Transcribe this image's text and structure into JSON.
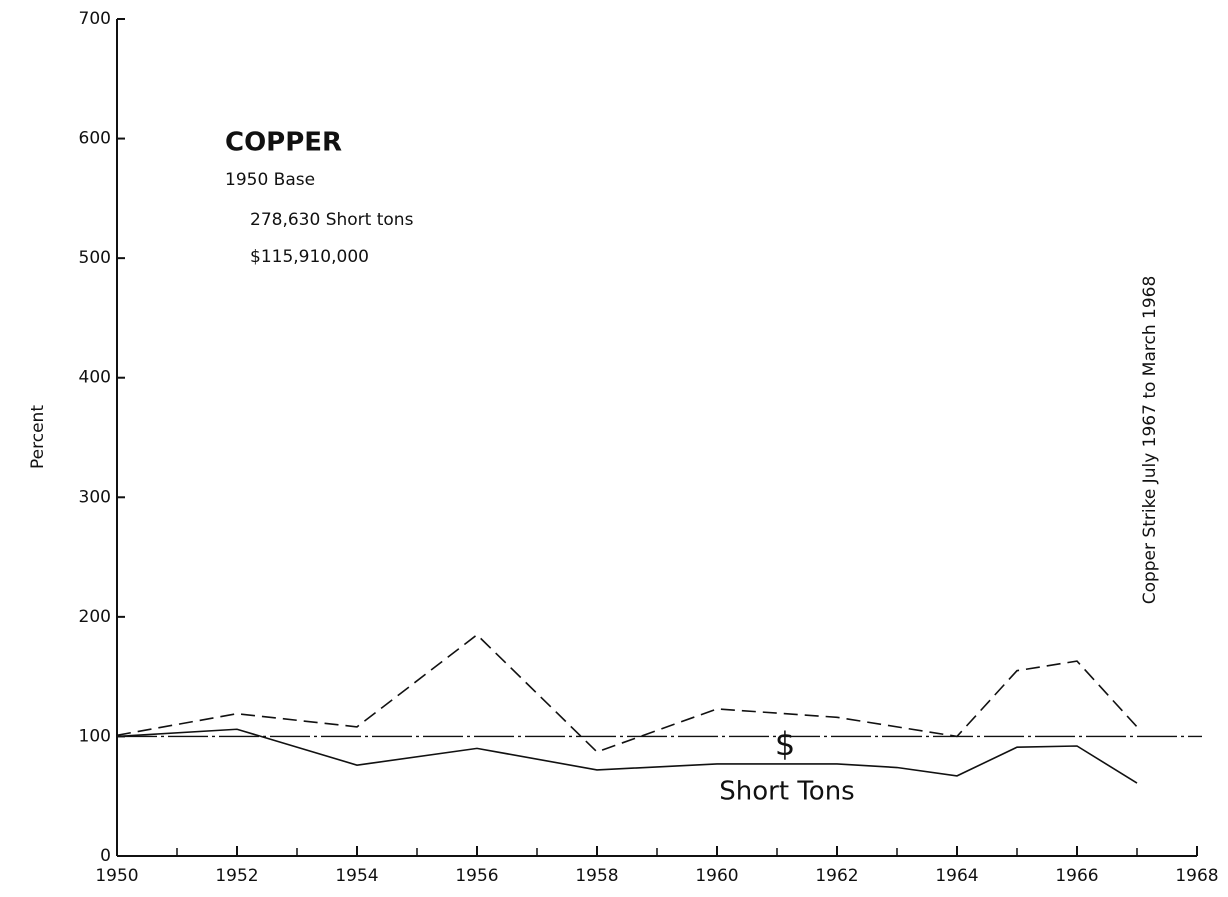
{
  "chart_data": {
    "type": "line",
    "title": "COPPER",
    "annotations": [
      "1950 Base",
      "278,630 Short tons",
      "$115,910,000",
      "Copper Strike July 1967 to March 1968"
    ],
    "ylabel": "Percent",
    "series": [
      {
        "name": "$",
        "color": "#111111",
        "dash": "dashed",
        "x": [
          1950,
          1952,
          1954,
          1956,
          1958,
          1960,
          1962,
          1964,
          1965,
          1966,
          1967
        ],
        "values": [
          101,
          119,
          108,
          185,
          87,
          123,
          116,
          100,
          155,
          163,
          108
        ]
      },
      {
        "name": "Short Tons",
        "color": "#111111",
        "dash": "solid",
        "x": [
          1950,
          1952,
          1954,
          1956,
          1958,
          1960,
          1962,
          1963,
          1964,
          1965,
          1966,
          1967
        ],
        "values": [
          100,
          106,
          76,
          90,
          72,
          77,
          77,
          74,
          67,
          91,
          92,
          61
        ]
      }
    ],
    "hline": 100,
    "xlim": [
      1950,
      1968
    ],
    "xticks": [
      1950,
      1952,
      1954,
      1956,
      1958,
      1960,
      1962,
      1964,
      1966,
      1968
    ],
    "xticks_minor": [
      1951,
      1953,
      1955,
      1957,
      1959,
      1961,
      1963,
      1965,
      1967
    ],
    "ylim": [
      0,
      700
    ],
    "yticks": [
      0,
      100,
      200,
      300,
      400,
      500,
      600,
      700
    ],
    "grid": false
  }
}
